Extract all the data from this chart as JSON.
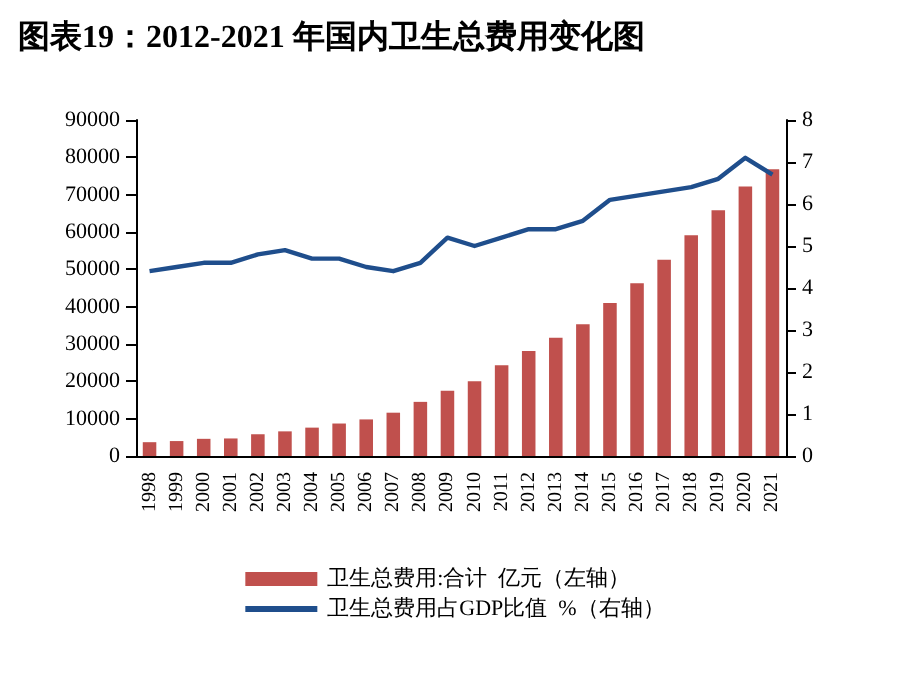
{
  "chart_data": {
    "type": "bar",
    "title": "图表19：2012-2021 年国内卫生总费用变化图",
    "categories": [
      "1998",
      "1999",
      "2000",
      "2001",
      "2002",
      "2003",
      "2004",
      "2005",
      "2006",
      "2007",
      "2008",
      "2009",
      "2010",
      "2011",
      "2012",
      "2013",
      "2014",
      "2015",
      "2016",
      "2017",
      "2018",
      "2019",
      "2020",
      "2021"
    ],
    "series": [
      {
        "name": "卫生总费用:合计  亿元（左轴）",
        "color": "#c0504d",
        "values": [
          3700,
          4000,
          4600,
          4700,
          5800,
          6600,
          7600,
          8700,
          9800,
          11600,
          14500,
          17500,
          20000,
          24300,
          28100,
          31700,
          35300,
          41000,
          46300,
          52600,
          59100,
          65800,
          72200,
          76800
        ]
      },
      {
        "name": "卫生总费用占GDP比值  %（右轴）",
        "type": "line",
        "axis": "y2",
        "color": "#1f4e8c",
        "values": [
          4.4,
          4.5,
          4.6,
          4.6,
          4.8,
          4.9,
          4.7,
          4.7,
          4.5,
          4.4,
          4.6,
          5.2,
          5.0,
          5.2,
          5.4,
          5.4,
          5.6,
          6.1,
          6.2,
          6.3,
          6.4,
          6.6,
          7.1,
          6.7
        ]
      }
    ],
    "ylim": [
      0,
      90000
    ],
    "yticks": [
      0,
      10000,
      20000,
      30000,
      40000,
      50000,
      60000,
      70000,
      80000,
      90000
    ],
    "y2lim": [
      0,
      8
    ],
    "y2ticks": [
      0,
      1,
      2,
      3,
      4,
      5,
      6,
      7,
      8
    ],
    "grid": false,
    "legend": "bottom",
    "marker": "none"
  }
}
